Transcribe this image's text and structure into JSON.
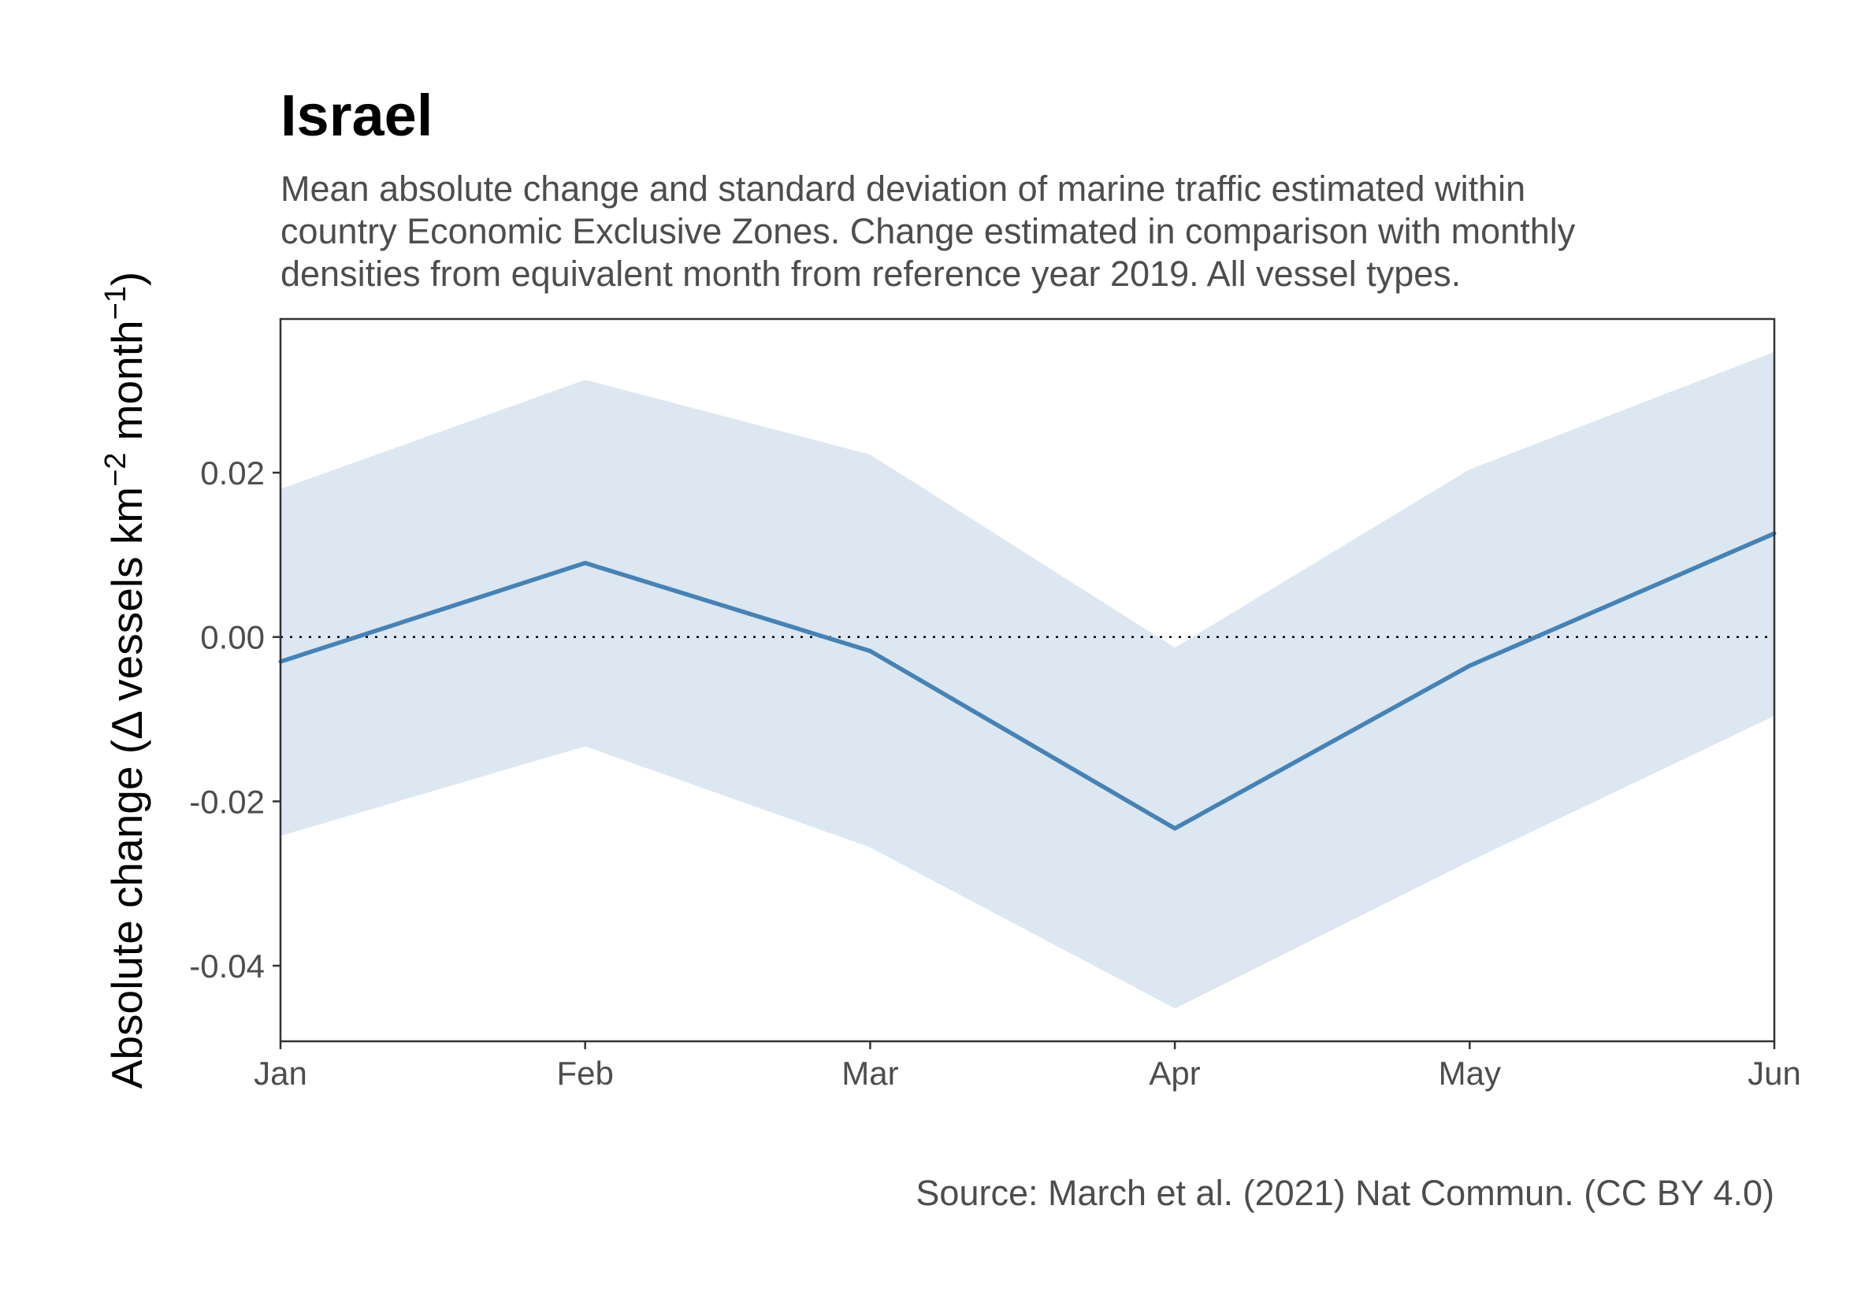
{
  "chart_data": {
    "type": "area",
    "title": "Israel",
    "subtitle_lines": [
      "Mean absolute change and standard deviation of marine traffic estimated within",
      "country Economic Exclusive Zones. Change estimated in comparison with monthly",
      "densities from equivalent month from reference year 2019. All vessel types."
    ],
    "ylabel": {
      "prefix": "Absolute change (",
      "delta": "Δ",
      "text1": " vessels km",
      "sup1": "−2",
      "text2": " month",
      "sup2": "−1",
      "suffix": ")"
    },
    "xlabel": "",
    "caption": "Source: March et al. (2021) Nat Commun. (CC BY 4.0)",
    "categories": [
      "Jan",
      "Feb",
      "Mar",
      "Apr",
      "May",
      "Jun"
    ],
    "x_days": [
      0,
      31,
      60,
      91,
      121,
      152
    ],
    "mean": [
      -0.003,
      0.009,
      -0.0017,
      -0.0233,
      -0.0035,
      0.0126
    ],
    "lower": [
      -0.0242,
      -0.0133,
      -0.0256,
      -0.0452,
      -0.0273,
      -0.0096
    ],
    "upper": [
      0.018,
      0.0313,
      0.0222,
      -0.0013,
      0.0204,
      0.0347
    ],
    "yticks": [
      -0.04,
      -0.02,
      0.0,
      0.02
    ],
    "ytick_labels": [
      "-0.04",
      "-0.02",
      "0.00",
      "0.02"
    ],
    "ylim": [
      -0.0492,
      0.0387
    ],
    "reference_line": 0,
    "grid": false,
    "colors": {
      "line": "#4682b4",
      "band": "#dce7f1",
      "axis": "#333333",
      "ref": "#000000"
    }
  }
}
